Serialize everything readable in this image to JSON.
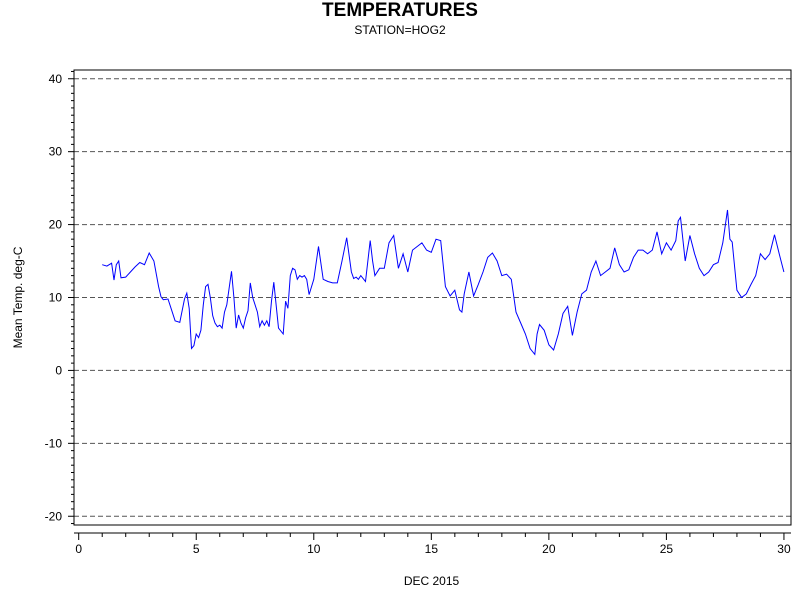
{
  "chart_data": {
    "type": "line",
    "title": "TEMPERATURES",
    "subtitle": "STATION=HOG2",
    "xlabel": "DEC 2015",
    "ylabel": "Mean Temp. deg-C",
    "xlim": [
      -0.2,
      30.3
    ],
    "ylim": [
      -21.2,
      41.2
    ],
    "xticks": [
      0,
      5,
      10,
      15,
      20,
      25,
      30
    ],
    "yticks": [
      -20,
      -10,
      0,
      10,
      20,
      30,
      40
    ],
    "x_minor_step": 1,
    "y_minor_step": 1,
    "grid": "horizontal dashed at major y ticks",
    "line_color": "#0000ff",
    "series": [
      {
        "x": [
          1.0,
          1.2,
          1.4,
          1.5,
          1.6,
          1.7,
          1.8,
          2.0,
          2.2,
          2.4,
          2.6,
          2.8,
          3.0,
          3.2,
          3.4,
          3.5,
          3.6,
          3.8,
          3.9,
          4.1,
          4.3,
          4.5,
          4.6,
          4.7,
          4.8,
          4.9,
          5.0,
          5.1,
          5.2,
          5.3,
          5.4,
          5.5,
          5.6,
          5.7,
          5.8,
          5.9,
          6.0,
          6.1,
          6.2,
          6.3,
          6.5,
          6.6,
          6.7,
          6.8,
          6.9,
          7.0,
          7.1,
          7.2,
          7.3,
          7.4,
          7.6,
          7.7,
          7.8,
          7.9,
          8.0,
          8.1,
          8.2,
          8.3,
          8.5,
          8.7,
          8.8,
          8.9,
          9.0,
          9.1,
          9.2,
          9.3,
          9.4,
          9.5,
          9.6,
          9.7,
          9.8,
          10.0,
          10.2,
          10.4,
          10.6,
          10.8,
          11.0,
          11.2,
          11.4,
          11.6,
          11.7,
          11.8,
          11.9,
          12.0,
          12.2,
          12.4,
          12.5,
          12.6,
          12.8,
          13.0,
          13.2,
          13.4,
          13.6,
          13.8,
          14.0,
          14.2,
          14.4,
          14.6,
          14.8,
          15.0,
          15.2,
          15.4,
          15.6,
          15.8,
          16.0,
          16.2,
          16.3,
          16.4,
          16.6,
          16.8,
          17.0,
          17.2,
          17.4,
          17.6,
          17.8,
          18.0,
          18.2,
          18.4,
          18.6,
          18.8,
          19.0,
          19.2,
          19.4,
          19.5,
          19.6,
          19.8,
          20.0,
          20.2,
          20.4,
          20.6,
          20.8,
          21.0,
          21.2,
          21.4,
          21.6,
          21.8,
          22.0,
          22.2,
          22.4,
          22.6,
          22.8,
          23.0,
          23.2,
          23.4,
          23.6,
          23.8,
          24.0,
          24.2,
          24.4,
          24.6,
          24.8,
          25.0,
          25.2,
          25.4,
          25.5,
          25.6,
          25.8,
          26.0,
          26.2,
          26.4,
          26.6,
          26.8,
          27.0,
          27.2,
          27.4,
          27.6,
          27.7,
          27.8,
          28.0,
          28.2,
          28.4,
          28.6,
          28.8,
          29.0,
          29.2,
          29.4,
          29.6,
          29.8,
          30.0
        ],
        "y": [
          14.5,
          14.3,
          14.7,
          12.4,
          14.5,
          15.0,
          12.7,
          12.8,
          13.5,
          14.2,
          14.8,
          14.5,
          16.1,
          15.0,
          11.5,
          10.1,
          9.7,
          9.8,
          8.8,
          6.8,
          6.6,
          9.8,
          10.6,
          8.5,
          3.0,
          3.4,
          5.0,
          4.5,
          5.5,
          9.0,
          11.5,
          11.8,
          10.0,
          7.5,
          6.5,
          6.0,
          6.2,
          5.8,
          8.0,
          9.0,
          13.6,
          10.0,
          5.8,
          7.6,
          6.5,
          5.8,
          7.2,
          8.2,
          12.0,
          10.0,
          8.0,
          6.0,
          6.8,
          6.2,
          6.8,
          6.0,
          9.5,
          12.1,
          5.8,
          5.0,
          9.5,
          8.5,
          13.0,
          14.0,
          13.8,
          12.5,
          13.0,
          12.8,
          13.0,
          12.5,
          10.4,
          12.5,
          17.0,
          12.5,
          12.2,
          12.0,
          12.0,
          15.0,
          18.2,
          13.5,
          12.6,
          12.8,
          12.5,
          13.0,
          12.2,
          17.8,
          15.0,
          13.0,
          14.0,
          14.0,
          17.5,
          18.5,
          14.0,
          16.0,
          13.5,
          16.5,
          17.0,
          17.5,
          16.5,
          16.2,
          18.0,
          17.8,
          11.5,
          10.2,
          11.0,
          8.3,
          8.0,
          10.5,
          13.5,
          10.2,
          11.8,
          13.5,
          15.5,
          16.1,
          15.0,
          13.0,
          13.2,
          12.5,
          8.0,
          6.5,
          5.0,
          3.0,
          2.2,
          5.0,
          6.3,
          5.5,
          3.5,
          2.8,
          5.0,
          7.8,
          8.8,
          4.8,
          8.0,
          10.5,
          11.0,
          13.5,
          15.0,
          13.0,
          13.5,
          14.0,
          16.8,
          14.5,
          13.5,
          13.8,
          15.5,
          16.5,
          16.5,
          16.0,
          16.5,
          19.0,
          16.0,
          17.5,
          16.5,
          17.8,
          20.5,
          21.0,
          15.0,
          18.5,
          16.0,
          14.0,
          13.0,
          13.5,
          14.5,
          14.8,
          17.5,
          22.0,
          18.0,
          17.6,
          11.0,
          10.0,
          10.5,
          11.8,
          13.0,
          16.0,
          15.2,
          16.0,
          18.6,
          16.0,
          13.5
        ]
      }
    ]
  }
}
